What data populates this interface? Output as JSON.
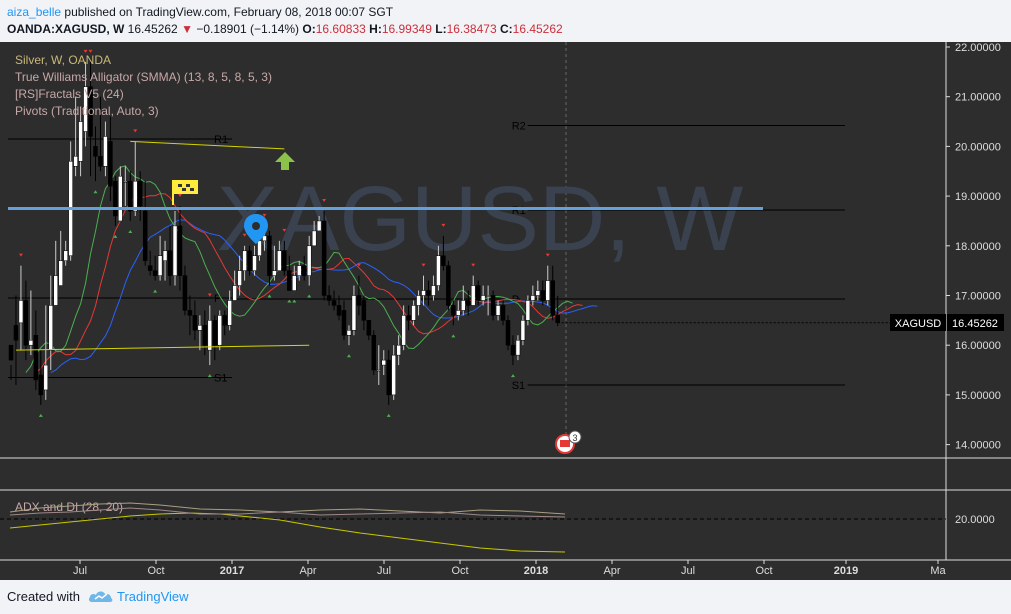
{
  "header": {
    "author": "aiza_belle",
    "published_text": "published on TradingView.com, February 08, 2018 00:07 SGT",
    "symbol": "OANDA:XAGUSD, W",
    "last": "16.45262",
    "change": "−0.18901 (−1.14%)",
    "open_label": "O:",
    "open": "16.60833",
    "high_label": "H:",
    "high": "16.99349",
    "low_label": "L:",
    "low": "16.38473",
    "close_label": "C:",
    "close": "16.45262"
  },
  "legend": {
    "line1": "Silver, W, OANDA",
    "line2": "True Williams Alligator (SMMA) (13, 8, 5, 8, 5, 3)",
    "line3": "[RS]Fractals V5 (24)",
    "line4": "Pivots (Traditional, Auto, 3)"
  },
  "watermark": "XAGUSD, W",
  "price_tag": {
    "symbol": "XAGUSD",
    "value": "16.45262"
  },
  "event_badge": "3",
  "adx_label": "ADX and DI (28, 20)",
  "adx_axis_label": "20.0000",
  "footer": {
    "created_with": "Created with",
    "brand": "TradingView"
  },
  "colors": {
    "background": "#2d2d2d",
    "bull": "#ffffff",
    "bear": "#000000",
    "jaw": "#2962ff",
    "teeth": "#e53935",
    "lips": "#4caf50",
    "trendline_blue": "#64a0dc",
    "trendline_yellow": "#d4d400",
    "pivot_line": "#000000",
    "adx": "#c8c800"
  },
  "chart_data": {
    "type": "candlestick",
    "timeframe": "W",
    "y_axis": {
      "min": 13.5,
      "max": 22.1,
      "ticks": [
        14,
        15,
        16,
        17,
        18,
        19,
        20,
        21,
        22
      ],
      "tick_labels": [
        "14.00000",
        "15.00000",
        "16.00000",
        "17.00000",
        "18.00000",
        "19.00000",
        "20.00000",
        "21.00000",
        "22.00000"
      ]
    },
    "x_axis": {
      "tick_labels": [
        "Jul",
        "Oct",
        "2017",
        "Apr",
        "Jul",
        "Oct",
        "2018",
        "Apr",
        "Jul",
        "Oct",
        "2019",
        "Ma"
      ],
      "bold_labels": [
        "2017",
        "2018",
        "2019"
      ]
    },
    "pivots_current": [
      {
        "label": "R2",
        "value": 20.42
      },
      {
        "label": "R1",
        "value": 18.72
      },
      {
        "label": "P",
        "value": 16.93
      },
      {
        "label": "S1",
        "value": 15.2
      }
    ],
    "pivots_previous": [
      {
        "label": "R1",
        "value": 20.15
      },
      {
        "label": "P",
        "value": 16.95
      },
      {
        "label": "S1",
        "value": 15.35
      }
    ],
    "horizontal_line": {
      "value": 18.75,
      "color": "trendline_blue"
    },
    "trendlines": [
      {
        "from": [
          1,
          15.9
        ],
        "to": [
          60,
          16.0
        ]
      },
      {
        "from": [
          24,
          20.1
        ],
        "to": [
          55,
          19.95
        ]
      }
    ],
    "candles": [
      [
        15.7,
        16.0,
        15.6,
        15.3
      ],
      [
        16.1,
        16.4,
        17.0,
        15.2
      ],
      [
        16.9,
        16.45,
        17.6,
        15.9
      ],
      [
        16.0,
        16.9,
        17.3,
        15.7
      ],
      [
        16.1,
        16.0,
        17.1,
        15.8
      ],
      [
        15.3,
        16.2,
        16.7,
        15.1
      ],
      [
        15.0,
        15.4,
        15.9,
        14.8
      ],
      [
        15.6,
        15.1,
        16.8,
        14.9
      ],
      [
        16.8,
        15.9,
        17.4,
        15.5
      ],
      [
        17.4,
        16.8,
        18.1,
        16.8
      ],
      [
        17.7,
        17.2,
        18.3,
        17.2
      ],
      [
        17.9,
        17.7,
        18.1,
        17.6
      ],
      [
        19.7,
        17.8,
        20.1,
        17.7
      ],
      [
        19.8,
        19.6,
        21.0,
        19.4
      ],
      [
        20.5,
        19.7,
        20.8,
        19.4
      ],
      [
        21.2,
        20.3,
        21.7,
        20.0
      ],
      [
        20.2,
        21.2,
        21.7,
        19.4
      ],
      [
        19.8,
        20.0,
        20.4,
        19.3
      ],
      [
        19.6,
        19.8,
        21.0,
        19.5
      ],
      [
        20.2,
        19.6,
        20.5,
        19.4
      ],
      [
        19.2,
        20.1,
        20.6,
        18.9
      ],
      [
        18.6,
        19.3,
        19.4,
        18.4
      ],
      [
        19.4,
        18.5,
        19.6,
        18.5
      ],
      [
        19.3,
        19.3,
        19.6,
        18.8
      ],
      [
        18.7,
        19.3,
        19.5,
        18.5
      ],
      [
        19.3,
        18.7,
        20.1,
        18.6
      ],
      [
        18.8,
        19.3,
        19.5,
        18.5
      ],
      [
        17.7,
        18.7,
        19.3,
        17.6
      ],
      [
        17.5,
        17.6,
        17.9,
        17.4
      ],
      [
        17.4,
        17.5,
        17.8,
        17.3
      ],
      [
        17.8,
        17.4,
        18.2,
        17.3
      ],
      [
        17.9,
        17.7,
        18.1,
        17.3
      ],
      [
        17.4,
        17.9,
        18.4,
        17.2
      ],
      [
        18.4,
        17.4,
        18.7,
        17.2
      ],
      [
        17.4,
        18.4,
        18.8,
        17.1
      ],
      [
        16.7,
        17.4,
        17.6,
        16.6
      ],
      [
        16.6,
        16.7,
        17.0,
        16.2
      ],
      [
        16.3,
        16.6,
        16.9,
        16.1
      ],
      [
        16.4,
        16.3,
        16.6,
        15.9
      ],
      [
        16.0,
        16.4,
        16.7,
        15.8
      ],
      [
        16.5,
        15.9,
        16.8,
        15.6
      ],
      [
        16.0,
        16.5,
        16.6,
        15.7
      ],
      [
        16.6,
        16.0,
        16.7,
        15.9
      ],
      [
        16.4,
        16.6,
        16.7,
        16.2
      ],
      [
        16.9,
        16.4,
        17.1,
        16.3
      ],
      [
        17.2,
        16.9,
        17.5,
        16.9
      ],
      [
        17.5,
        17.2,
        17.8,
        17.0
      ],
      [
        17.9,
        17.5,
        18.0,
        17.3
      ],
      [
        17.5,
        17.9,
        18.0,
        17.4
      ],
      [
        17.8,
        17.5,
        18.0,
        17.4
      ],
      [
        18.1,
        17.8,
        18.3,
        17.7
      ],
      [
        18.2,
        18.1,
        18.4,
        17.9
      ],
      [
        17.4,
        18.2,
        18.3,
        17.2
      ],
      [
        17.5,
        17.4,
        18.0,
        17.3
      ],
      [
        17.9,
        17.5,
        18.1,
        17.7
      ],
      [
        17.5,
        17.9,
        18.1,
        17.4
      ],
      [
        17.1,
        17.5,
        17.8,
        17.1
      ],
      [
        17.4,
        17.1,
        17.6,
        17.1
      ],
      [
        17.6,
        17.4,
        17.7,
        17.3
      ],
      [
        17.4,
        17.6,
        17.8,
        17.3
      ],
      [
        18.0,
        17.4,
        18.2,
        17.2
      ],
      [
        18.3,
        18.0,
        18.5,
        18.0
      ],
      [
        18.5,
        18.3,
        18.6,
        18.3
      ],
      [
        17.0,
        18.5,
        18.7,
        16.9
      ],
      [
        16.9,
        17.0,
        17.2,
        16.8
      ],
      [
        16.8,
        16.9,
        17.1,
        16.7
      ],
      [
        16.6,
        16.8,
        17.0,
        16.5
      ],
      [
        16.2,
        16.7,
        16.9,
        16.1
      ],
      [
        16.3,
        16.2,
        16.4,
        16.0
      ],
      [
        17.0,
        16.3,
        17.2,
        16.2
      ],
      [
        16.8,
        17.0,
        17.4,
        16.6
      ],
      [
        16.5,
        16.9,
        17.0,
        16.3
      ],
      [
        16.2,
        16.5,
        16.5,
        16.1
      ],
      [
        15.5,
        16.2,
        16.3,
        15.4
      ],
      [
        15.5,
        15.5,
        16.0,
        15.2
      ],
      [
        15.7,
        15.6,
        15.9,
        15.4
      ],
      [
        15.0,
        15.7,
        15.9,
        14.8
      ],
      [
        15.8,
        15.0,
        16.0,
        14.9
      ],
      [
        16.0,
        15.8,
        16.2,
        15.6
      ],
      [
        16.6,
        16.0,
        16.8,
        15.9
      ],
      [
        16.5,
        16.6,
        16.8,
        16.3
      ],
      [
        16.8,
        16.5,
        16.9,
        16.4
      ],
      [
        17.0,
        16.8,
        17.1,
        16.6
      ],
      [
        17.1,
        17.0,
        17.4,
        16.8
      ],
      [
        17.0,
        17.1,
        17.3,
        16.8
      ],
      [
        17.2,
        17.0,
        17.4,
        16.9
      ],
      [
        17.8,
        17.2,
        18.0,
        17.1
      ],
      [
        17.6,
        17.8,
        18.2,
        17.5
      ],
      [
        16.8,
        17.6,
        17.7,
        16.7
      ],
      [
        16.6,
        16.8,
        16.9,
        16.4
      ],
      [
        16.7,
        16.6,
        16.9,
        16.5
      ],
      [
        16.9,
        16.7,
        17.2,
        16.6
      ],
      [
        16.8,
        16.9,
        17.1,
        16.6
      ],
      [
        17.2,
        16.8,
        17.4,
        16.8
      ],
      [
        16.9,
        17.2,
        17.3,
        16.8
      ],
      [
        17.0,
        16.9,
        17.2,
        16.8
      ],
      [
        17.0,
        17.0,
        17.2,
        16.6
      ],
      [
        16.6,
        17.0,
        17.1,
        16.5
      ],
      [
        16.8,
        16.6,
        16.9,
        16.5
      ],
      [
        16.5,
        16.8,
        16.9,
        16.4
      ],
      [
        16.0,
        16.5,
        16.6,
        15.9
      ],
      [
        15.8,
        16.0,
        16.2,
        15.6
      ],
      [
        16.1,
        15.8,
        16.2,
        15.7
      ],
      [
        16.5,
        16.1,
        16.6,
        16.0
      ],
      [
        16.9,
        16.5,
        17.0,
        16.4
      ],
      [
        17.0,
        16.9,
        17.2,
        16.8
      ],
      [
        17.1,
        17.0,
        17.3,
        16.9
      ],
      [
        16.9,
        17.1,
        17.3,
        16.8
      ],
      [
        17.3,
        16.9,
        17.6,
        16.8
      ],
      [
        16.6,
        17.3,
        17.6,
        16.5
      ],
      [
        16.45262,
        16.60833,
        16.99349,
        16.38473
      ]
    ],
    "candles_columns": [
      "close",
      "open",
      "high",
      "low"
    ]
  }
}
